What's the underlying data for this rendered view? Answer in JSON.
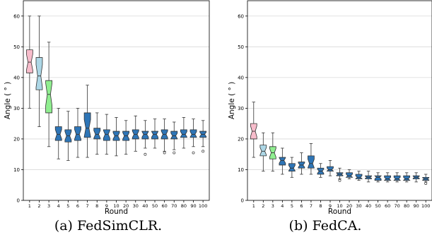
{
  "chart_data": [
    {
      "type": "box",
      "caption": "(a) FedSimCLR.",
      "xlabel": "Round",
      "ylabel": "Angle ( ° )",
      "ylim": [
        0,
        65
      ],
      "yticks": [
        0,
        10,
        20,
        30,
        40,
        50,
        60
      ],
      "grid": "horizontal",
      "categories": [
        "1",
        "2",
        "3",
        "4",
        "5",
        "6",
        "7",
        "8",
        "9",
        "10",
        "20",
        "30",
        "40",
        "50",
        "60",
        "70",
        "80",
        "90",
        "100"
      ],
      "box_colors": [
        "#f7bccb",
        "#add7e6",
        "#90ee90",
        "#2e75b6",
        "#2e75b6",
        "#2e75b6",
        "#2e75b6",
        "#2e75b6",
        "#2e75b6",
        "#2e75b6",
        "#2e75b6",
        "#2e75b6",
        "#2e75b6",
        "#2e75b6",
        "#2e75b6",
        "#2e75b6",
        "#2e75b6",
        "#2e75b6",
        "#2e75b6"
      ],
      "boxes": [
        {
          "whislo": 30,
          "q1": 41.5,
          "med": 45,
          "q3": 49,
          "whishi": 60,
          "fliers": []
        },
        {
          "whislo": 24,
          "q1": 36,
          "med": 40.5,
          "q3": 46.5,
          "whishi": 60,
          "fliers": []
        },
        {
          "whislo": 17.5,
          "q1": 28.5,
          "med": 34.5,
          "q3": 39,
          "whishi": 51.5,
          "fliers": []
        },
        {
          "whislo": 13.5,
          "q1": 19.5,
          "med": 21.5,
          "q3": 24,
          "whishi": 30,
          "fliers": []
        },
        {
          "whislo": 13,
          "q1": 19,
          "med": 21,
          "q3": 23,
          "whishi": 29,
          "fliers": []
        },
        {
          "whislo": 14,
          "q1": 19.5,
          "med": 21.5,
          "q3": 24,
          "whishi": 30,
          "fliers": []
        },
        {
          "whislo": 14,
          "q1": 20.5,
          "med": 23.5,
          "q3": 28.5,
          "whishi": 37.5,
          "fliers": []
        },
        {
          "whislo": 15,
          "q1": 20,
          "med": 21.5,
          "q3": 23.5,
          "whishi": 28.5,
          "fliers": []
        },
        {
          "whislo": 15,
          "q1": 19.5,
          "med": 21.5,
          "q3": 23,
          "whishi": 28,
          "fliers": []
        },
        {
          "whislo": 14.5,
          "q1": 19.5,
          "med": 21,
          "q3": 22.5,
          "whishi": 27,
          "fliers": []
        },
        {
          "whislo": 15,
          "q1": 19.5,
          "med": 21,
          "q3": 22.5,
          "whishi": 26,
          "fliers": []
        },
        {
          "whislo": 16,
          "q1": 20,
          "med": 21.5,
          "q3": 23,
          "whishi": 27.5,
          "fliers": []
        },
        {
          "whislo": 17,
          "q1": 20,
          "med": 21.5,
          "q3": 22.5,
          "whishi": 26,
          "fliers": [
            15
          ]
        },
        {
          "whislo": 17,
          "q1": 20,
          "med": 21.5,
          "q3": 22.5,
          "whishi": 26.5,
          "fliers": []
        },
        {
          "whislo": 16,
          "q1": 20,
          "med": 21.5,
          "q3": 23,
          "whishi": 26.5,
          "fliers": [
            15.5
          ]
        },
        {
          "whislo": 16.5,
          "q1": 20,
          "med": 21,
          "q3": 22.5,
          "whishi": 25.5,
          "fliers": [
            15.5
          ]
        },
        {
          "whislo": 17,
          "q1": 20.5,
          "med": 21.5,
          "q3": 23,
          "whishi": 27,
          "fliers": []
        },
        {
          "whislo": 17.5,
          "q1": 20.5,
          "med": 21.5,
          "q3": 23,
          "whishi": 26.5,
          "fliers": [
            15.5
          ]
        },
        {
          "whislo": 17.5,
          "q1": 20.5,
          "med": 21.5,
          "q3": 22.5,
          "whishi": 26,
          "fliers": [
            16
          ]
        }
      ]
    },
    {
      "type": "box",
      "caption": "(b) FedCA.",
      "xlabel": "Round",
      "ylabel": "Angle ( ° )",
      "ylim": [
        0,
        65
      ],
      "yticks": [
        0,
        10,
        20,
        30,
        40,
        50,
        60
      ],
      "grid": "horizontal",
      "categories": [
        "1",
        "2",
        "3",
        "4",
        "5",
        "6",
        "7",
        "8",
        "9",
        "10",
        "20",
        "30",
        "40",
        "50",
        "60",
        "70",
        "80",
        "90",
        "100"
      ],
      "box_colors": [
        "#f7bccb",
        "#add7e6",
        "#90ee90",
        "#2e75b6",
        "#2e75b6",
        "#2e75b6",
        "#2e75b6",
        "#2e75b6",
        "#2e75b6",
        "#2e75b6",
        "#2e75b6",
        "#2e75b6",
        "#2e75b6",
        "#2e75b6",
        "#2e75b6",
        "#2e75b6",
        "#2e75b6",
        "#2e75b6",
        "#2e75b6"
      ],
      "boxes": [
        {
          "whislo": 14,
          "q1": 20,
          "med": 22.5,
          "q3": 25,
          "whishi": 32,
          "fliers": []
        },
        {
          "whislo": 9.5,
          "q1": 14.5,
          "med": 16,
          "q3": 18,
          "whishi": 22,
          "fliers": []
        },
        {
          "whislo": 9.5,
          "q1": 13.5,
          "med": 15.5,
          "q3": 17.5,
          "whishi": 22,
          "fliers": []
        },
        {
          "whislo": 8.5,
          "q1": 11.5,
          "med": 13,
          "q3": 14,
          "whishi": 17,
          "fliers": []
        },
        {
          "whislo": 7.5,
          "q1": 9.5,
          "med": 10.5,
          "q3": 12,
          "whishi": 14,
          "fliers": []
        },
        {
          "whislo": 8.5,
          "q1": 10.5,
          "med": 11.5,
          "q3": 12.5,
          "whishi": 15.5,
          "fliers": []
        },
        {
          "whislo": 8.5,
          "q1": 10.5,
          "med": 12,
          "q3": 14.5,
          "whishi": 18.5,
          "fliers": []
        },
        {
          "whislo": 7.5,
          "q1": 8.5,
          "med": 9.5,
          "q3": 10.5,
          "whishi": 12,
          "fliers": []
        },
        {
          "whislo": 8,
          "q1": 9.5,
          "med": 10,
          "q3": 11,
          "whishi": 13,
          "fliers": []
        },
        {
          "whislo": 7,
          "q1": 8,
          "med": 8.5,
          "q3": 9,
          "whishi": 10.5,
          "fliers": [
            6.5
          ]
        },
        {
          "whislo": 7,
          "q1": 7.5,
          "med": 8,
          "q3": 9,
          "whishi": 10,
          "fliers": []
        },
        {
          "whislo": 6.5,
          "q1": 7,
          "med": 7.5,
          "q3": 8.5,
          "whishi": 9.5,
          "fliers": []
        },
        {
          "whislo": 6,
          "q1": 7,
          "med": 7.5,
          "q3": 8,
          "whishi": 9.5,
          "fliers": []
        },
        {
          "whislo": 6,
          "q1": 6.5,
          "med": 7.5,
          "q3": 8,
          "whishi": 9,
          "fliers": []
        },
        {
          "whislo": 6,
          "q1": 6.5,
          "med": 7,
          "q3": 8,
          "whishi": 9,
          "fliers": []
        },
        {
          "whislo": 6,
          "q1": 6.5,
          "med": 7,
          "q3": 8,
          "whishi": 9,
          "fliers": []
        },
        {
          "whislo": 6,
          "q1": 6.5,
          "med": 7,
          "q3": 8,
          "whishi": 9,
          "fliers": []
        },
        {
          "whislo": 6,
          "q1": 7,
          "med": 7.5,
          "q3": 8,
          "whishi": 9,
          "fliers": []
        },
        {
          "whislo": 6,
          "q1": 6.5,
          "med": 7,
          "q3": 7.5,
          "whishi": 8.5,
          "fliers": [
            5.5
          ]
        }
      ]
    }
  ]
}
